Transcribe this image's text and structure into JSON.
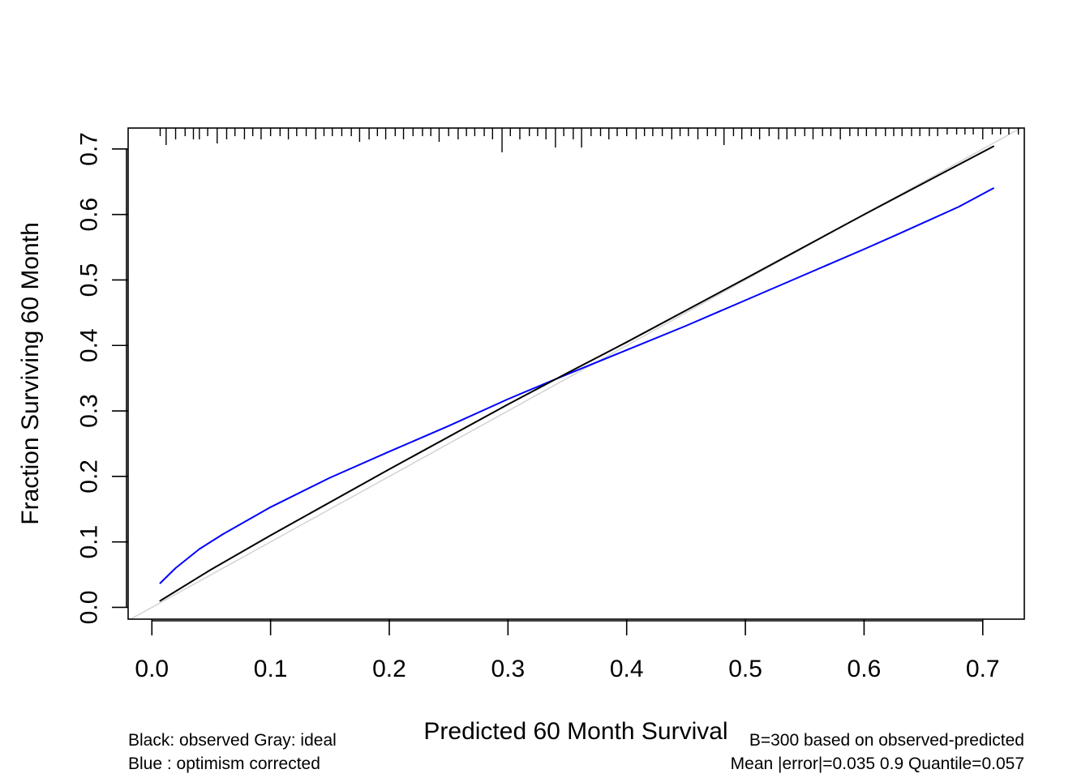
{
  "chart_data": {
    "type": "line",
    "xlabel": "Predicted  60 Month Survival",
    "ylabel": "Fraction Surviving 60 Month",
    "xlim": [
      -0.02,
      0.735
    ],
    "ylim": [
      -0.018,
      0.732
    ],
    "x_ticks": [
      "0.0",
      "0.1",
      "0.2",
      "0.3",
      "0.4",
      "0.5",
      "0.6",
      "0.7"
    ],
    "y_ticks": [
      "0.0",
      "0.1",
      "0.2",
      "0.3",
      "0.4",
      "0.5",
      "0.6",
      "0.7"
    ],
    "grid": false,
    "colors": {
      "observed": "#000000",
      "optimism_corrected": "#0000ff",
      "ideal": "#d3d3d3",
      "axes": "#000000"
    },
    "series": [
      {
        "id": "ideal",
        "x": [
          -0.02,
          0.735
        ],
        "y": [
          -0.02,
          0.735
        ]
      },
      {
        "id": "observed",
        "x": [
          0.007,
          0.05,
          0.1,
          0.2,
          0.3,
          0.35,
          0.4,
          0.5,
          0.6,
          0.709
        ],
        "y": [
          0.01,
          0.058,
          0.11,
          0.211,
          0.31,
          0.358,
          0.405,
          0.502,
          0.6,
          0.704
        ]
      },
      {
        "id": "optimism_corrected",
        "x": [
          0.007,
          0.02,
          0.04,
          0.06,
          0.1,
          0.15,
          0.2,
          0.25,
          0.3,
          0.35,
          0.4,
          0.45,
          0.5,
          0.55,
          0.6,
          0.63,
          0.68,
          0.709
        ],
        "y": [
          0.037,
          0.06,
          0.089,
          0.112,
          0.153,
          0.198,
          0.238,
          0.277,
          0.318,
          0.356,
          0.393,
          0.43,
          0.469,
          0.508,
          0.547,
          0.571,
          0.612,
          0.64
        ]
      }
    ],
    "rug_x": [
      0.007,
      0.012,
      0.02,
      0.028,
      0.035,
      0.04,
      0.047,
      0.055,
      0.063,
      0.07,
      0.078,
      0.085,
      0.092,
      0.1,
      0.108,
      0.115,
      0.122,
      0.13,
      0.138,
      0.145,
      0.152,
      0.16,
      0.168,
      0.175,
      0.183,
      0.19,
      0.197,
      0.205,
      0.212,
      0.22,
      0.228,
      0.235,
      0.242,
      0.25,
      0.258,
      0.265,
      0.272,
      0.28,
      0.287,
      0.295,
      0.302,
      0.31,
      0.318,
      0.325,
      0.332,
      0.34,
      0.347,
      0.355,
      0.362,
      0.37,
      0.378,
      0.385,
      0.392,
      0.4,
      0.408,
      0.415,
      0.422,
      0.43,
      0.438,
      0.445,
      0.452,
      0.46,
      0.468,
      0.475,
      0.482,
      0.49,
      0.497,
      0.505,
      0.512,
      0.52,
      0.528,
      0.535,
      0.542,
      0.55,
      0.557,
      0.565,
      0.572,
      0.58,
      0.588,
      0.595,
      0.602,
      0.61,
      0.618,
      0.625,
      0.632,
      0.64,
      0.647,
      0.655,
      0.662,
      0.67,
      0.678,
      0.685,
      0.692,
      0.7,
      0.708,
      0.715,
      0.722,
      0.73
    ],
    "rug_len": [
      10,
      21,
      14,
      10,
      14,
      14,
      10,
      19,
      14,
      10,
      14,
      10,
      14,
      10,
      10,
      14,
      10,
      10,
      14,
      10,
      10,
      10,
      10,
      17,
      14,
      10,
      14,
      10,
      14,
      10,
      10,
      10,
      17,
      10,
      14,
      10,
      10,
      10,
      14,
      30,
      10,
      14,
      10,
      10,
      14,
      24,
      10,
      14,
      24,
      10,
      10,
      14,
      10,
      10,
      14,
      10,
      10,
      10,
      14,
      10,
      10,
      14,
      10,
      10,
      21,
      10,
      14,
      10,
      14,
      10,
      14,
      14,
      10,
      10,
      14,
      10,
      10,
      14,
      10,
      10,
      10,
      10,
      10,
      10,
      10,
      10,
      10,
      10,
      10,
      8,
      8,
      8,
      8,
      14,
      8,
      8,
      8,
      8
    ],
    "notes": {
      "left": [
        "Black: observed  Gray: ideal",
        "Blue : optimism corrected"
      ],
      "right": [
        "B=300 based on observed-predicted",
        "Mean |error|=0.035  0.9 Quantile=0.057"
      ]
    }
  }
}
